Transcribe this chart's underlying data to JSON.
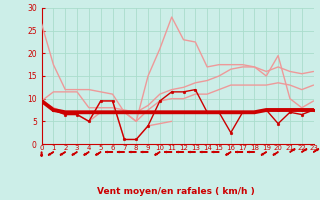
{
  "series": [
    {
      "name": "upper_light",
      "color": "#ee9999",
      "lw": 1.0,
      "marker": null,
      "values": [
        26.5,
        17.5,
        12,
        12,
        12,
        11.5,
        11,
        7,
        5,
        15,
        21,
        28,
        23,
        22.5,
        17,
        17.5,
        17.5,
        17.5,
        17,
        15,
        19.5,
        10,
        8,
        9.5
      ]
    },
    {
      "name": "mid_light_upper",
      "color": "#ee9999",
      "lw": 1.0,
      "marker": null,
      "values": [
        9.5,
        11.5,
        11.5,
        11.5,
        8,
        8,
        8,
        7.5,
        7,
        8.5,
        11,
        12,
        12.5,
        13.5,
        14,
        15,
        16.5,
        17,
        17,
        16,
        17,
        16,
        15.5,
        16
      ]
    },
    {
      "name": "mid_light_lower",
      "color": "#ee9999",
      "lw": 1.0,
      "marker": null,
      "values": [
        9.5,
        8,
        7,
        6.5,
        5,
        7,
        7,
        7,
        5,
        7.5,
        9.5,
        10,
        10,
        11,
        11,
        12,
        13,
        13,
        13,
        13,
        13.5,
        13,
        12,
        13
      ]
    },
    {
      "name": "lower_light",
      "color": "#ee9999",
      "lw": 1.0,
      "marker": null,
      "values": [
        9.5,
        7.5,
        6.5,
        6.5,
        5,
        9.5,
        9.5,
        1,
        1,
        4,
        4.5,
        5,
        null,
        null,
        null,
        null,
        null,
        null,
        null,
        null,
        null,
        null,
        null,
        null
      ]
    },
    {
      "name": "dark_flat",
      "color": "#cc0000",
      "lw": 2.8,
      "marker": "o",
      "markersize": 1.8,
      "values": [
        9.5,
        7.5,
        7,
        7,
        7,
        7,
        7,
        7,
        7,
        7,
        7,
        7,
        7,
        7,
        7,
        7,
        7,
        7,
        7,
        7.5,
        7.5,
        7.5,
        7.5,
        7.5
      ]
    },
    {
      "name": "dark_variable",
      "color": "#cc0000",
      "lw": 1.0,
      "marker": "o",
      "markersize": 2.0,
      "values": [
        9.5,
        7.5,
        6.5,
        6.5,
        5,
        9.5,
        9.5,
        1,
        1,
        4,
        9.5,
        11.5,
        11.5,
        12,
        7,
        7,
        2.5,
        7,
        7,
        7.5,
        4.5,
        7,
        6.5,
        7.5
      ]
    }
  ],
  "xlim": [
    0,
    23
  ],
  "ylim": [
    0,
    30
  ],
  "yticks": [
    0,
    5,
    10,
    15,
    20,
    25,
    30
  ],
  "xticks": [
    0,
    1,
    2,
    3,
    4,
    5,
    6,
    7,
    8,
    9,
    10,
    11,
    12,
    13,
    14,
    15,
    16,
    17,
    18,
    19,
    20,
    21,
    22,
    23
  ],
  "xlabel": "Vent moyen/en rafales ( km/h )",
  "bg_color": "#cceee8",
  "grid_color": "#aaddcc",
  "text_color": "#cc0000",
  "tick_color": "#cc0000",
  "label_color": "#cc0000"
}
